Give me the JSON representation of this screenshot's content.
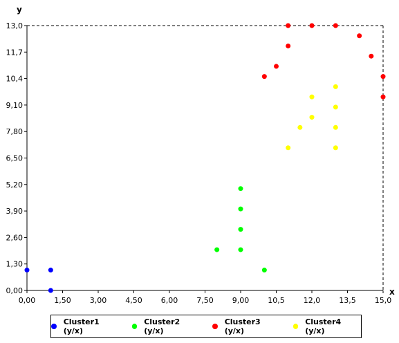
{
  "chart_data": {
    "type": "scatter",
    "xlabel": "x",
    "ylabel": "y",
    "xlim": [
      0,
      15
    ],
    "ylim": [
      0,
      13
    ],
    "x_ticks": [
      "0,00",
      "1,50",
      "3,00",
      "4,50",
      "6,00",
      "7,50",
      "9,00",
      "10,5",
      "12,0",
      "13,5",
      "15,0"
    ],
    "x_tick_values": [
      0,
      1.5,
      3,
      4.5,
      6,
      7.5,
      9,
      10.5,
      12,
      13.5,
      15
    ],
    "y_ticks": [
      "0,00",
      "1,30",
      "2,60",
      "3,90",
      "5,20",
      "6,50",
      "7,80",
      "9,10",
      "10,4",
      "11,7",
      "13,0"
    ],
    "y_tick_values": [
      0,
      1.3,
      2.6,
      3.9,
      5.2,
      6.5,
      7.8,
      9.1,
      10.4,
      11.7,
      13
    ],
    "grid": false,
    "legend_position": "bottom",
    "series": [
      {
        "name": "Cluster1 (y/x)",
        "color": "#0000ff",
        "points": [
          [
            0,
            1
          ],
          [
            1,
            1
          ],
          [
            1,
            0
          ]
        ]
      },
      {
        "name": "Cluster2 (y/x)",
        "color": "#00ff00",
        "points": [
          [
            8,
            2
          ],
          [
            9,
            5
          ],
          [
            9,
            4
          ],
          [
            9,
            3
          ],
          [
            9,
            2
          ],
          [
            10,
            1
          ]
        ]
      },
      {
        "name": "Cluster3 (y/x)",
        "color": "#ff0000",
        "points": [
          [
            10,
            10.5
          ],
          [
            10.5,
            11
          ],
          [
            11,
            12
          ],
          [
            11,
            13
          ],
          [
            12,
            13
          ],
          [
            13,
            13
          ],
          [
            14,
            12.5
          ],
          [
            14.5,
            11.5
          ],
          [
            15,
            10.5
          ],
          [
            15,
            9.5
          ]
        ]
      },
      {
        "name": "Cluster4 (y/x)",
        "color": "#ffff00",
        "points": [
          [
            11,
            7
          ],
          [
            11.5,
            8
          ],
          [
            12,
            8.5
          ],
          [
            12,
            9.5
          ],
          [
            13,
            10
          ],
          [
            13,
            9
          ],
          [
            13,
            8
          ],
          [
            13,
            7
          ]
        ]
      }
    ]
  }
}
